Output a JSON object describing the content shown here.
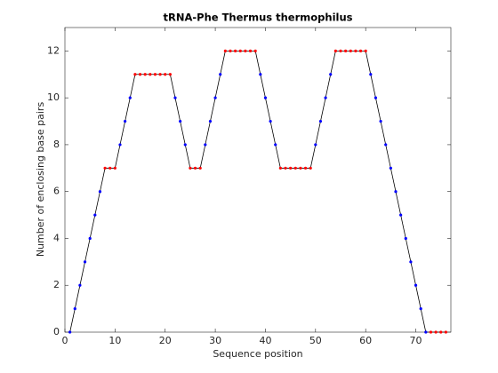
{
  "chart_data": {
    "type": "line",
    "title": "tRNA-Phe Thermus thermophilus",
    "xlabel": "Sequence position",
    "ylabel": "Number of enclosing base pairs",
    "x": [
      1,
      2,
      3,
      4,
      5,
      6,
      7,
      8,
      9,
      10,
      11,
      12,
      13,
      14,
      15,
      16,
      17,
      18,
      19,
      20,
      21,
      22,
      23,
      24,
      25,
      26,
      27,
      28,
      29,
      30,
      31,
      32,
      33,
      34,
      35,
      36,
      37,
      38,
      39,
      40,
      41,
      42,
      43,
      44,
      45,
      46,
      47,
      48,
      49,
      50,
      51,
      52,
      53,
      54,
      55,
      56,
      57,
      58,
      59,
      60,
      61,
      62,
      63,
      64,
      65,
      66,
      67,
      68,
      69,
      70,
      71,
      72,
      73,
      74,
      75,
      76
    ],
    "series": [
      {
        "color": "#000000",
        "values": [
          0,
          1,
          2,
          3,
          4,
          5,
          6,
          7,
          7,
          7,
          8,
          9,
          10,
          11,
          11,
          11,
          11,
          11,
          11,
          11,
          11,
          10,
          9,
          8,
          7,
          7,
          7,
          8,
          9,
          10,
          11,
          12,
          12,
          12,
          12,
          12,
          12,
          12,
          11,
          10,
          9,
          8,
          7,
          7,
          7,
          7,
          7,
          7,
          7,
          8,
          9,
          10,
          11,
          12,
          12,
          12,
          12,
          12,
          12,
          12,
          11,
          10,
          9,
          8,
          7,
          6,
          5,
          4,
          3,
          2,
          1,
          0,
          0,
          0,
          0,
          0
        ],
        "marker_colors": [
          "#0000ff",
          "#0000ff",
          "#0000ff",
          "#0000ff",
          "#0000ff",
          "#0000ff",
          "#0000ff",
          "#ff0000",
          "#ff0000",
          "#ff0000",
          "#0000ff",
          "#0000ff",
          "#0000ff",
          "#ff0000",
          "#ff0000",
          "#ff0000",
          "#ff0000",
          "#ff0000",
          "#ff0000",
          "#ff0000",
          "#ff0000",
          "#0000ff",
          "#0000ff",
          "#0000ff",
          "#ff0000",
          "#ff0000",
          "#ff0000",
          "#0000ff",
          "#0000ff",
          "#0000ff",
          "#0000ff",
          "#ff0000",
          "#ff0000",
          "#ff0000",
          "#ff0000",
          "#ff0000",
          "#ff0000",
          "#ff0000",
          "#0000ff",
          "#0000ff",
          "#0000ff",
          "#0000ff",
          "#ff0000",
          "#ff0000",
          "#ff0000",
          "#ff0000",
          "#ff0000",
          "#ff0000",
          "#ff0000",
          "#0000ff",
          "#0000ff",
          "#0000ff",
          "#0000ff",
          "#ff0000",
          "#ff0000",
          "#ff0000",
          "#ff0000",
          "#ff0000",
          "#ff0000",
          "#ff0000",
          "#0000ff",
          "#0000ff",
          "#0000ff",
          "#0000ff",
          "#0000ff",
          "#0000ff",
          "#0000ff",
          "#0000ff",
          "#0000ff",
          "#0000ff",
          "#0000ff",
          "#0000ff",
          "#ff0000",
          "#ff0000",
          "#ff0000",
          "#ff0000"
        ]
      }
    ],
    "xlim": [
      0,
      77
    ],
    "xticks": [
      0,
      10,
      20,
      30,
      40,
      50,
      60,
      70
    ],
    "ylim": [
      0,
      13
    ],
    "yticks": [
      0,
      2,
      4,
      6,
      8,
      10,
      12
    ],
    "grid": false
  }
}
